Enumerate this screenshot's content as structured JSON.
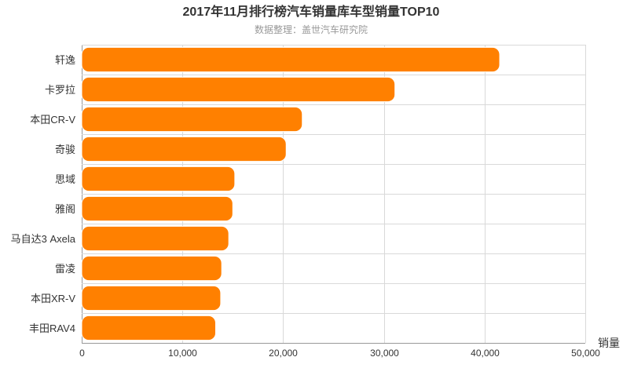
{
  "chart_data": {
    "type": "bar",
    "orientation": "horizontal",
    "title": "2017年11月排行榜汽车销量库车型销量TOP10",
    "subtitle": "数据整理：盖世汽车研究院",
    "xlabel": "销量",
    "categories": [
      "轩逸",
      "卡罗拉",
      "本田CR-V",
      "奇骏",
      "思域",
      "雅阁",
      "马自达3 Axela",
      "雷凌",
      "本田XR-V",
      "丰田RAV4"
    ],
    "values": [
      41500,
      31100,
      21900,
      20300,
      15200,
      15000,
      14600,
      13900,
      13800,
      13300
    ],
    "xlim": [
      0,
      50000
    ],
    "xticks": [
      "0",
      "10,000",
      "20,000",
      "30,000",
      "40,000",
      "50,000"
    ],
    "grid": true,
    "legend": "none",
    "colors": {
      "bar": "#ff8000",
      "bar_stroke": "#ffffff",
      "grid": "#d9d9d9",
      "axis": "#999999",
      "text": "#333333",
      "subtitle": "#999999"
    }
  }
}
